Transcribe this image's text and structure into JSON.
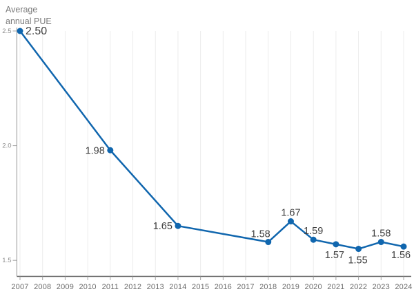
{
  "chart_data": {
    "type": "line",
    "title": "Average annual PUE",
    "categories": [
      "2007",
      "2008",
      "2009",
      "2010",
      "2011",
      "2012",
      "2013",
      "2014",
      "2015",
      "2016",
      "2017",
      "2018",
      "2019",
      "2020",
      "2021",
      "2022",
      "2023",
      "2024"
    ],
    "ylim": [
      1.43,
      2.5
    ],
    "y_ticks": [
      {
        "value": 2.5,
        "label": "2.5"
      },
      {
        "value": 2.0,
        "label": "2.0"
      },
      {
        "value": 1.5,
        "label": "1.5"
      }
    ],
    "grid": "vertical-only",
    "legend": "none",
    "series": [
      {
        "name": "Average annual PUE",
        "points": [
          {
            "year": "2007",
            "value": 2.5,
            "label": "2.50",
            "anchor": "start",
            "dx": 8,
            "dy": 5,
            "size": 16
          },
          {
            "year": "2011",
            "value": 1.98,
            "label": "1.98",
            "anchor": "end",
            "dx": -8,
            "dy": 5
          },
          {
            "year": "2014",
            "value": 1.65,
            "label": "1.65",
            "anchor": "end",
            "dx": -8,
            "dy": 5
          },
          {
            "year": "2018",
            "value": 1.58,
            "label": "1.58",
            "anchor": "end",
            "dx": 3,
            "dy": -7
          },
          {
            "year": "2019",
            "value": 1.67,
            "label": "1.67",
            "anchor": "middle",
            "dx": 0,
            "dy": -8
          },
          {
            "year": "2020",
            "value": 1.59,
            "label": "1.59",
            "anchor": "middle",
            "dx": 0,
            "dy": -8
          },
          {
            "year": "2021",
            "value": 1.57,
            "label": "1.57",
            "anchor": "middle",
            "dx": -2,
            "dy": 20
          },
          {
            "year": "2022",
            "value": 1.55,
            "label": "1.55",
            "anchor": "middle",
            "dx": -1,
            "dy": 21
          },
          {
            "year": "2023",
            "value": 1.58,
            "label": "1.58",
            "anchor": "middle",
            "dx": 0,
            "dy": -8
          },
          {
            "year": "2024",
            "value": 1.56,
            "label": "1.56",
            "anchor": "middle",
            "dx": -4,
            "dy": 17
          }
        ]
      }
    ],
    "colors": {
      "line": "#1066ae",
      "point": "#1066ae",
      "data_label": "#3d3d3d",
      "title": "#7a7a7a",
      "x_axis_label": "#6d6d6d",
      "y_axis_label": "#8e8e8e",
      "gridline": "#ececec",
      "x_axis_line": "#5f5f5f",
      "y_axis_line": "#8f8f8f",
      "tick": "#a3a3a3"
    }
  }
}
